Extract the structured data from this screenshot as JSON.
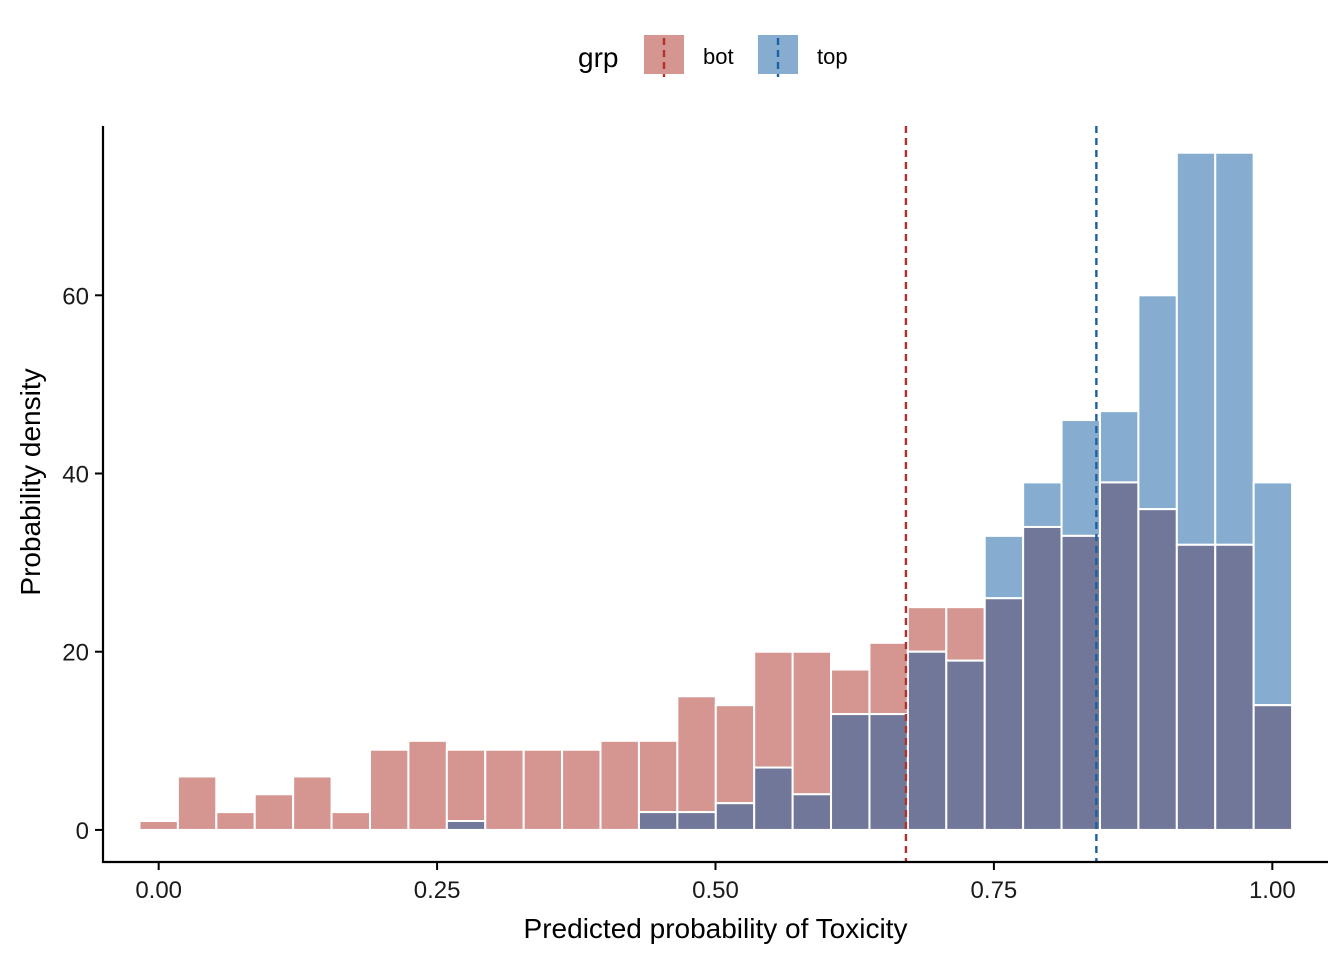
{
  "chart_data": {
    "type": "bar",
    "xlabel": "Predicted probability of Toxicity",
    "ylabel": "Probability density",
    "xlim": [
      -0.05,
      1.05
    ],
    "ylim": [
      -3.6,
      79
    ],
    "x_ticks": [
      0.0,
      0.25,
      0.5,
      0.75,
      1.0
    ],
    "x_tick_labels": [
      "0.00",
      "0.25",
      "0.50",
      "0.75",
      "1.00"
    ],
    "y_ticks": [
      0,
      20,
      40,
      60
    ],
    "y_tick_labels": [
      "0",
      "20",
      "40",
      "60"
    ],
    "bin_width": 0.0345,
    "bin_centers": [
      0.0,
      0.0345,
      0.069,
      0.1035,
      0.138,
      0.1725,
      0.207,
      0.2415,
      0.276,
      0.3105,
      0.345,
      0.3795,
      0.414,
      0.4485,
      0.483,
      0.5175,
      0.552,
      0.5865,
      0.621,
      0.6555,
      0.69,
      0.7245,
      0.759,
      0.7935,
      0.828,
      0.8625,
      0.897,
      0.9315,
      0.966,
      1.0005
    ],
    "legend": {
      "title": "grp",
      "placement": "top",
      "entries": [
        "bot",
        "top"
      ]
    },
    "grid": false,
    "overlap_color": "#717799",
    "series": [
      {
        "name": "bot",
        "color": "#d59591",
        "line_color": "#b2312b",
        "mean": 0.671,
        "values": [
          1,
          6,
          2,
          4,
          6,
          2,
          9,
          10,
          9,
          9,
          9,
          9,
          10,
          10,
          15,
          14,
          20,
          20,
          18,
          21,
          25,
          25,
          26,
          34,
          33,
          39,
          36,
          32,
          32,
          14
        ]
      },
      {
        "name": "top",
        "color": "#86adcf",
        "line_color": "#1f5fa6",
        "mean": 0.842,
        "values": [
          0,
          0,
          0,
          0,
          0,
          0,
          0,
          0,
          1,
          0,
          0,
          0,
          0,
          2,
          2,
          3,
          7,
          4,
          13,
          13,
          20,
          19,
          33,
          39,
          46,
          47,
          60,
          76,
          76,
          39
        ]
      }
    ]
  }
}
